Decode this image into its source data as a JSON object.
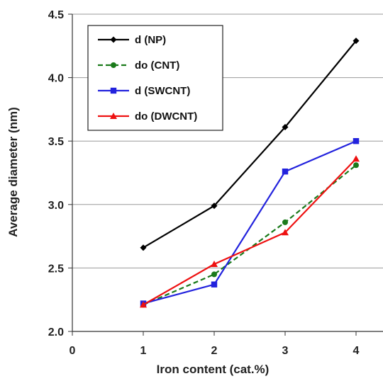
{
  "chart_data": {
    "type": "line",
    "title": "",
    "xlabel": "Iron content (cat.%)",
    "ylabel": "Average diameter (nm)",
    "xlim": [
      0,
      4
    ],
    "ylim": [
      2.0,
      4.5
    ],
    "x_ticks": [
      "0",
      "1",
      "2",
      "3",
      "4"
    ],
    "y_ticks": [
      "2.0",
      "2.5",
      "3.0",
      "3.5",
      "4.0",
      "4.5"
    ],
    "grid": "horizontal",
    "legend_position": "top-left",
    "x": [
      1,
      2,
      3,
      4
    ],
    "series": [
      {
        "name": "d (NP)",
        "values": [
          2.66,
          2.99,
          3.61,
          4.29
        ],
        "color": "#000000",
        "marker": "diamond",
        "dash": "solid"
      },
      {
        "name": "do (CNT)",
        "values": [
          2.21,
          2.45,
          2.86,
          3.31
        ],
        "color": "#1a7a1a",
        "marker": "circle",
        "dash": "dashed"
      },
      {
        "name": "d (SWCNT)",
        "values": [
          2.22,
          2.37,
          3.26,
          3.5
        ],
        "color": "#2222dd",
        "marker": "square",
        "dash": "solid"
      },
      {
        "name": "do (DWCNT)",
        "values": [
          2.21,
          2.53,
          2.78,
          3.36
        ],
        "color": "#ee1111",
        "marker": "triangle",
        "dash": "solid"
      }
    ]
  }
}
